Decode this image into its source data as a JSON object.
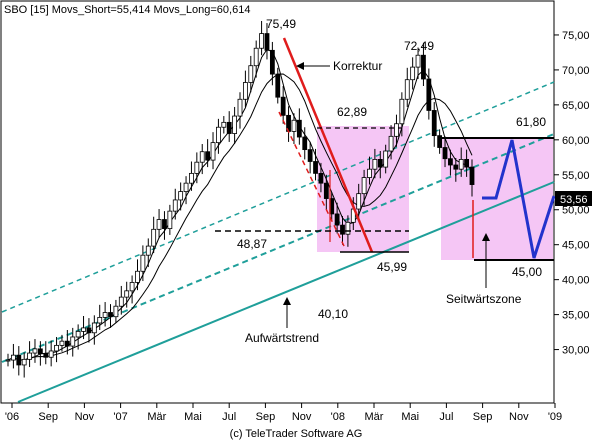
{
  "header": {
    "text": "SBO [15] Movs_Short=55,414 Movs_Long=60,614"
  },
  "footer": {
    "text": "(c) TeleTrader Software AG"
  },
  "colors": {
    "candle": "#000000",
    "teal": "#1f9f9a",
    "red": "#e01c1c",
    "pink": "#f5c6f5",
    "blue": "#2233cc",
    "price_box": "#000000"
  },
  "chart_data": {
    "type": "candlestick",
    "ylim": [
      22.5,
      80
    ],
    "y_ticks": [
      "30,00",
      "35,00",
      "40,00",
      "45,00",
      "50,00",
      "55,00",
      "60,00",
      "65,00",
      "70,00",
      "75,00"
    ],
    "x_ticks": [
      "'06",
      "Sep",
      "Nov",
      "'07",
      "Mär",
      "Mai",
      "Jul",
      "Sep",
      "Nov",
      "'08",
      "Mär",
      "Mai",
      "Jul",
      "Sep",
      "Nov",
      "'09"
    ],
    "last_price": "53,56",
    "series": [
      {
        "name": "Movs_Short",
        "value": "55,414"
      },
      {
        "name": "Movs_Long",
        "value": "60,614"
      }
    ],
    "closes": [
      28.5,
      29.2,
      27.8,
      28.6,
      29.5,
      30.1,
      29.4,
      28.9,
      29.8,
      30.6,
      31.2,
      30.5,
      31.8,
      32.6,
      33.1,
      32.4,
      33.8,
      34.6,
      35.3,
      34.7,
      36.2,
      37.5,
      38.4,
      39.6,
      41.2,
      43.5,
      44.8,
      47.2,
      48.6,
      47.3,
      49.8,
      51.4,
      52.6,
      53.8,
      55.2,
      56.8,
      58.3,
      57.1,
      59.6,
      61.8,
      62.5,
      60.9,
      63.4,
      65.8,
      68.2,
      70.6,
      73.1,
      75.2,
      72.8,
      69.4,
      66.1,
      63.5,
      61.2,
      62.8,
      60.4,
      58.6,
      56.9,
      55.2,
      53.8,
      51.6,
      49.4,
      47.8,
      46.5,
      48.2,
      50.1,
      52.3,
      54.6,
      55.8,
      57.2,
      56.1,
      58.4,
      60.5,
      62.3,
      65.8,
      68.6,
      70.4,
      72.1,
      68.7,
      64.2,
      60.6,
      58.9,
      57.3,
      56.4,
      55.8,
      57.2,
      56.1,
      53.6
    ],
    "annotations": {
      "levels": [
        "75,49",
        "72,49",
        "62,89",
        "61,80",
        "48,87",
        "45,99",
        "45,00",
        "40,10"
      ],
      "labels": [
        "Korrektur",
        "Aufwärtstrend",
        "Seitwärtszone"
      ]
    }
  }
}
